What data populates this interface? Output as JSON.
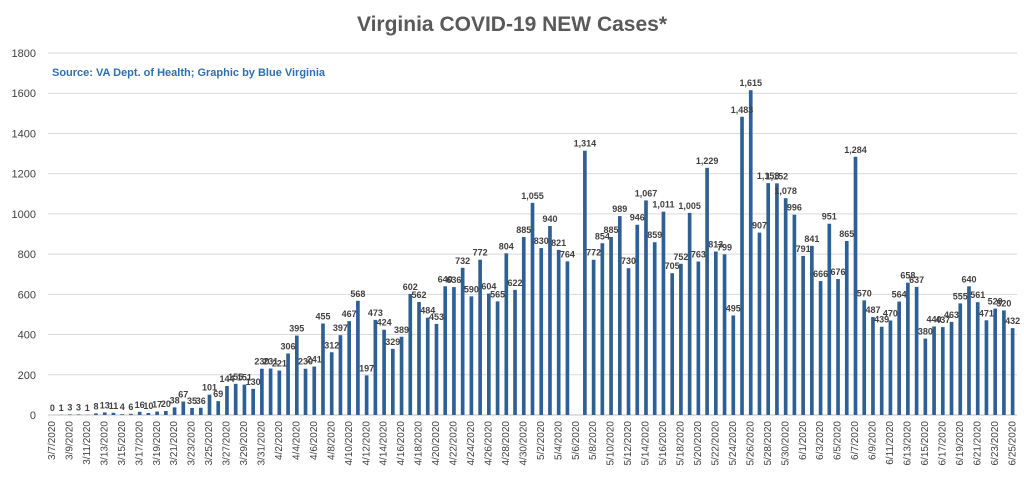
{
  "colors": {
    "bar": "#2e5f95",
    "grid": "#d9d9d9",
    "text": "#404040",
    "source": "#2e6fb0",
    "title": "#595959"
  },
  "chart_data": {
    "type": "bar",
    "title": "Virginia COVID-19 NEW Cases*",
    "source_note": "Source: VA Dept. of Health; Graphic by Blue Virginia",
    "xlabel": "",
    "ylabel": "",
    "ylim": [
      0,
      1800
    ],
    "yticks": [
      0,
      200,
      400,
      600,
      800,
      1000,
      1200,
      1400,
      1600,
      1800
    ],
    "grid": true,
    "legend": "none",
    "categories": [
      "3/7/2020",
      "3/8/2020",
      "3/9/2020",
      "3/10/2020",
      "3/11/2020",
      "3/12/2020",
      "3/13/2020",
      "3/14/2020",
      "3/15/2020",
      "3/16/2020",
      "3/17/2020",
      "3/18/2020",
      "3/19/2020",
      "3/20/2020",
      "3/21/2020",
      "3/22/2020",
      "3/23/2020",
      "3/24/2020",
      "3/25/2020",
      "3/26/2020",
      "3/27/2020",
      "3/28/2020",
      "3/29/2020",
      "3/30/2020",
      "3/31/2020",
      "4/1/2020",
      "4/2/2020",
      "4/3/2020",
      "4/4/2020",
      "4/5/2020",
      "4/6/2020",
      "4/7/2020",
      "4/8/2020",
      "4/9/2020",
      "4/10/2020",
      "4/11/2020",
      "4/12/2020",
      "4/13/2020",
      "4/14/2020",
      "4/15/2020",
      "4/16/2020",
      "4/17/2020",
      "4/18/2020",
      "4/19/2020",
      "4/20/2020",
      "4/21/2020",
      "4/22/2020",
      "4/23/2020",
      "4/24/2020",
      "4/25/2020",
      "4/26/2020",
      "4/27/2020",
      "4/28/2020",
      "4/29/2020",
      "4/30/2020",
      "5/1/2020",
      "5/2/2020",
      "5/3/2020",
      "5/4/2020",
      "5/5/2020",
      "5/6/2020",
      "5/7/2020",
      "5/8/2020",
      "5/9/2020",
      "5/10/2020",
      "5/11/2020",
      "5/12/2020",
      "5/13/2020",
      "5/14/2020",
      "5/15/2020",
      "5/16/2020",
      "5/17/2020",
      "5/18/2020",
      "5/19/2020",
      "5/20/2020",
      "5/21/2020",
      "5/22/2020",
      "5/23/2020",
      "5/24/2020",
      "5/25/2020",
      "5/26/2020",
      "5/27/2020",
      "5/28/2020",
      "5/29/2020",
      "5/30/2020",
      "5/31/2020",
      "6/1/2020",
      "6/2/2020",
      "6/3/2020",
      "6/4/2020",
      "6/5/2020",
      "6/6/2020",
      "6/7/2020",
      "6/8/2020",
      "6/9/2020",
      "6/10/2020",
      "6/11/2020",
      "6/12/2020",
      "6/13/2020",
      "6/14/2020",
      "6/15/2020",
      "6/16/2020",
      "6/17/2020",
      "6/18/2020",
      "6/19/2020",
      "6/20/2020",
      "6/21/2020",
      "6/22/2020",
      "6/23/2020",
      "6/24/2020",
      "6/25/2020"
    ],
    "values": [
      0,
      1,
      3,
      3,
      1,
      8,
      13,
      11,
      4,
      6,
      16,
      10,
      17,
      20,
      38,
      67,
      35,
      36,
      101,
      69,
      144,
      155,
      151,
      130,
      230,
      231,
      221,
      306,
      395,
      230,
      241,
      455,
      312,
      397,
      467,
      568,
      197,
      473,
      424,
      329,
      389,
      602,
      562,
      484,
      453,
      640,
      636,
      732,
      590,
      772,
      604,
      565,
      804,
      622,
      885,
      1055,
      830,
      940,
      821,
      764,
      null,
      1314,
      772,
      854,
      885,
      989,
      730,
      946,
      1067,
      859,
      1011,
      705,
      752,
      1005,
      763,
      1229,
      813,
      799,
      495,
      1483,
      1615,
      907,
      1153,
      1152,
      1078,
      996,
      791,
      841,
      666,
      951,
      676,
      865,
      1284,
      570,
      487,
      439,
      470,
      564,
      658,
      637,
      380,
      440,
      437,
      463,
      555,
      640,
      561,
      471,
      529,
      520,
      432
    ],
    "data_labels": [
      "0",
      "1",
      "3",
      "3",
      "1",
      "8",
      "13",
      "11",
      "4",
      "6",
      "16",
      "10",
      "17",
      "20",
      "38",
      "67",
      "35",
      "36",
      "101",
      "69",
      "144",
      "155",
      "151",
      "130",
      "230",
      "231",
      "221",
      "306",
      "395",
      "230",
      "241",
      "455",
      "312",
      "397",
      "467",
      "568",
      "197",
      "473",
      "424",
      "329",
      "389",
      "602",
      "562",
      "484",
      "453",
      "640",
      "636",
      "732",
      "590",
      "772",
      "604",
      "565",
      "804",
      "622",
      "885",
      "1,055",
      "830",
      "940",
      "821",
      "764",
      "",
      "1,314",
      "772",
      "854",
      "885",
      "989",
      "730",
      "946",
      "1,067",
      "859",
      "1,011",
      "705",
      "752",
      "1,005",
      "763",
      "1,229",
      "813",
      "799",
      "495",
      "1,483",
      "1,615",
      "907",
      "1,153",
      "1,152",
      "1,078",
      "996",
      "791",
      "841",
      "666",
      "951",
      "676",
      "865",
      "1,284",
      "570",
      "487",
      "439",
      "470",
      "564",
      "658",
      "637",
      "380",
      "440",
      "437",
      "463",
      "555",
      "640",
      "561",
      "471",
      "529",
      "520",
      "432"
    ]
  }
}
